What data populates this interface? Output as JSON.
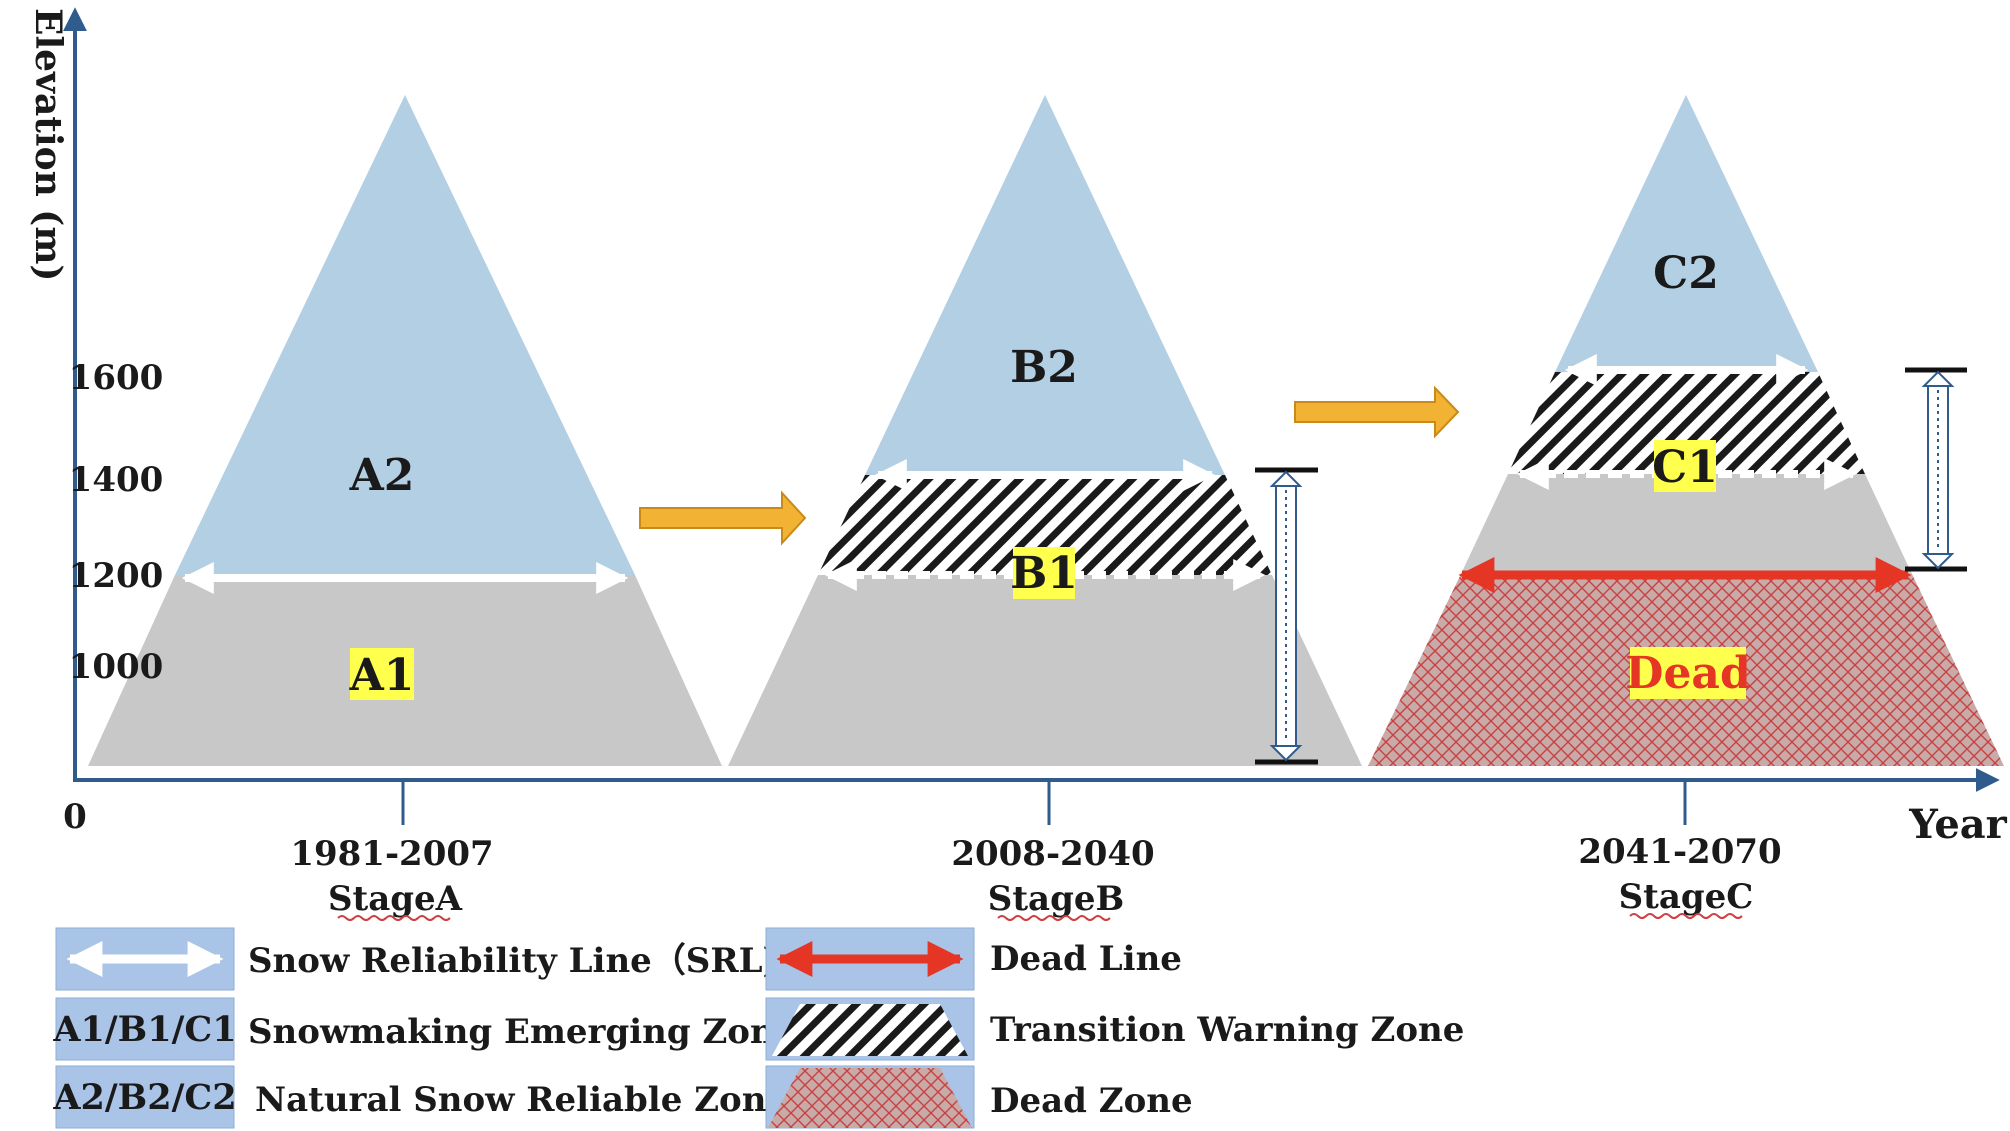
{
  "axes": {
    "y_label": "Elevation (m)",
    "x_label": "Year",
    "origin_label": "0",
    "y_ticks": [
      "1600",
      "1400",
      "1200",
      "1000"
    ]
  },
  "stages": [
    {
      "years": "1981-2007",
      "name": "StageA",
      "lower_label": "A1",
      "upper_label": "A2"
    },
    {
      "years": "2008-2040",
      "name": "StageB",
      "lower_label": "B1",
      "upper_label": "B2"
    },
    {
      "years": "2041-2070",
      "name": "StageC",
      "lower_label": "C1",
      "upper_label": "C2",
      "dead_label": "Dead"
    }
  ],
  "legend": {
    "srl": "Snow Reliability Line（SRL)",
    "emerging_swatch": "A1/B1/C1",
    "emerging": "Snowmaking Emerging Zone",
    "reliable_swatch": "A2/B2/C2",
    "reliable": "Natural Snow Reliable Zone",
    "dead_line": "Dead Line",
    "transition": "Transition Warning Zone",
    "dead_zone": "Dead Zone"
  },
  "colors": {
    "axis": "#2f5c8c",
    "snow_blue": "#b3cfe4",
    "grey_zone": "#c8c8c8",
    "highlight_yellow": "#ffff4d",
    "arrow_orange": "#f2b234",
    "dead_red": "#e53524",
    "legend_swatch": "#a9c4e6"
  }
}
